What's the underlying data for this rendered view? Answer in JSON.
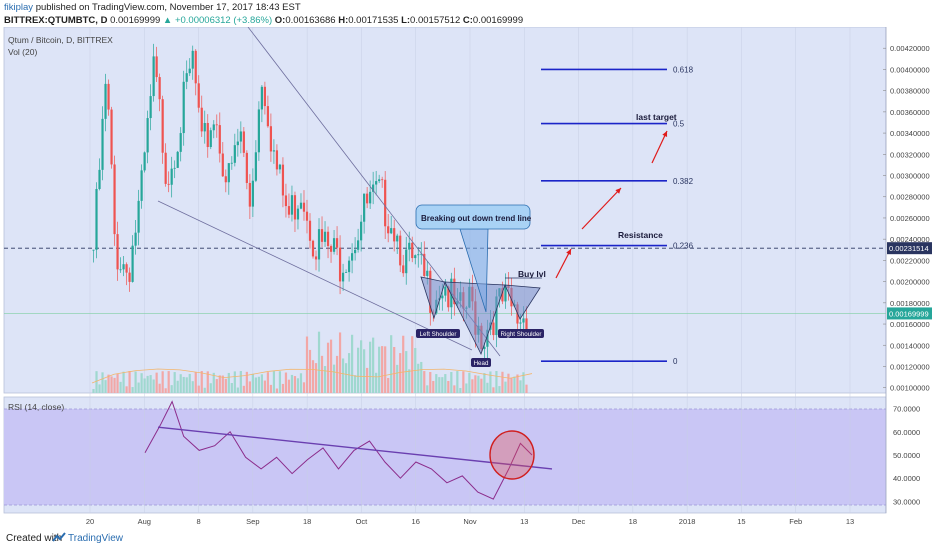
{
  "header": {
    "author": "fikiplay",
    "published_text": "published on TradingView.com, November 17, 2017 18:43 EST",
    "symbol": "BITTREX:QTUMBTC, D",
    "last": "0.00169999",
    "change": "▲ +0.00006312 (+3.86%)",
    "open_label": "O:",
    "open": "0.00163686",
    "high_label": "H:",
    "high": "0.00171535",
    "low_label": "L:",
    "low": "0.00157512",
    "close_label": "C:",
    "close": "0.00169999"
  },
  "legend": {
    "main": "Qtum / Bitcoin, D, BITTREX",
    "vol": "Vol (20)",
    "rsi": "RSI (14, close)"
  },
  "footer": {
    "created_with": "Created with",
    "brand": "TradingView"
  },
  "colors": {
    "pane_bg": "#dde4f7",
    "rsi_band": "#c9c6f5",
    "up": "#26a69a",
    "down": "#ef5350",
    "trendline": "#6e6e9e",
    "fib": "#1b24c8",
    "arrow": "#e01b1b",
    "rsi_line": "#8b2c8b",
    "rsi_trend": "#6a3fb0",
    "price_line": "#2a3560",
    "last_price_bg": "#26a69a"
  },
  "chart_data": {
    "type": "candlestick",
    "price_axis": {
      "min": 0.00095,
      "max": 0.0044,
      "ticks": [
        "0.00440000",
        "0.00420000",
        "0.00400000",
        "0.00380000",
        "0.00360000",
        "0.00340000",
        "0.00320000",
        "0.00300000",
        "0.00280000",
        "0.00260000",
        "0.00240000",
        "0.00220000",
        "0.00200000",
        "0.00180000",
        "0.00160000",
        "0.00140000",
        "0.00120000",
        "0.00100000"
      ],
      "price_marker": "0.00231514",
      "last_marker": "0.00169999"
    },
    "rsi_axis": {
      "min": 25,
      "max": 75,
      "ticks": [
        "70.0000",
        "60.0000",
        "50.0000",
        "40.0000",
        "30.0000"
      ],
      "band": [
        30,
        70
      ]
    },
    "x_ticks": [
      "20",
      "Aug",
      "8",
      "Sep",
      "18",
      "Oct",
      "16",
      "Nov",
      "13",
      "Dec",
      "18",
      "2018",
      "15",
      "Feb",
      "13"
    ],
    "trend_points": [
      [
        0,
        0.0023
      ],
      [
        3,
        0.0039
      ],
      [
        5,
        0.0023
      ],
      [
        8,
        0.0021
      ],
      [
        11,
        0.0028
      ],
      [
        14,
        0.004
      ],
      [
        17,
        0.003
      ],
      [
        20,
        0.0035
      ],
      [
        23,
        0.0041
      ],
      [
        25,
        0.0032
      ],
      [
        28,
        0.0036
      ],
      [
        31,
        0.0029
      ],
      [
        34,
        0.0034
      ],
      [
        36,
        0.0027
      ],
      [
        39,
        0.004
      ],
      [
        42,
        0.0031
      ],
      [
        45,
        0.0026
      ],
      [
        48,
        0.0029
      ],
      [
        51,
        0.0024
      ],
      [
        54,
        0.0023
      ],
      [
        57,
        0.0022
      ],
      [
        60,
        0.0024
      ],
      [
        63,
        0.0027
      ],
      [
        66,
        0.0028
      ],
      [
        69,
        0.0026
      ],
      [
        72,
        0.0022
      ],
      [
        75,
        0.0021
      ],
      [
        78,
        0.0019
      ],
      [
        81,
        0.002
      ],
      [
        84,
        0.00165
      ],
      [
        87,
        0.0018
      ],
      [
        90,
        0.00148
      ],
      [
        92,
        0.0017
      ],
      [
        95,
        0.0018
      ],
      [
        98,
        0.00165
      ],
      [
        100,
        0.0017
      ]
    ],
    "rsi_points": [
      [
        0,
        51
      ],
      [
        4,
        63
      ],
      [
        7,
        73
      ],
      [
        10,
        58
      ],
      [
        14,
        52
      ],
      [
        18,
        54
      ],
      [
        22,
        60
      ],
      [
        26,
        49
      ],
      [
        30,
        44
      ],
      [
        34,
        49
      ],
      [
        38,
        42
      ],
      [
        42,
        48
      ],
      [
        46,
        53
      ],
      [
        50,
        44
      ],
      [
        54,
        52
      ],
      [
        58,
        56
      ],
      [
        62,
        47
      ],
      [
        66,
        40
      ],
      [
        70,
        47
      ],
      [
        74,
        44
      ],
      [
        78,
        38
      ],
      [
        82,
        41
      ],
      [
        86,
        34
      ],
      [
        90,
        31
      ],
      [
        94,
        44
      ],
      [
        97,
        55
      ],
      [
        100,
        50
      ]
    ],
    "fib_levels": [
      {
        "label": "0.618",
        "price": 0.004
      },
      {
        "label": "0.5",
        "price": 0.00349
      },
      {
        "label": "0.382",
        "price": 0.00295
      },
      {
        "label": "0.236",
        "price": 0.00234
      },
      {
        "label": "0",
        "price": 0.00125
      }
    ],
    "annotations": {
      "breakout": "Breaking out down trend line",
      "resistance": "Resistance",
      "last_target": "last target",
      "buy_lvl": "Buy lvl",
      "left_shoulder": "Left Shoulder",
      "head": "Head",
      "right_shoulder": "Right Shoulder"
    }
  }
}
